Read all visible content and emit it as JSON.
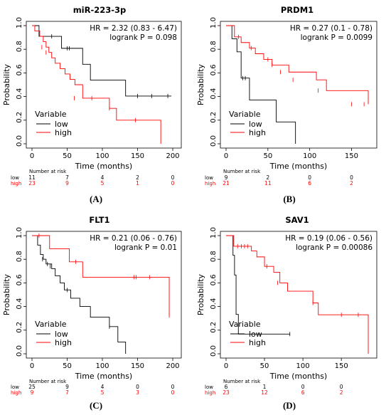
{
  "panels": [
    {
      "caption": "(A)"
    },
    {
      "caption": "(B)"
    },
    {
      "caption": "(C)"
    },
    {
      "caption": "(D)"
    }
  ],
  "colors": {
    "low": "#000000",
    "high": "#ff0000",
    "axis": "#000000"
  },
  "chart_data": [
    {
      "type": "line",
      "title": "miR-223-3p",
      "xlabel": "Time (months)",
      "ylabel": "Probability",
      "xlim": [
        0,
        200
      ],
      "ylim": [
        0,
        1
      ],
      "xticks": [
        0,
        50,
        100,
        150,
        200
      ],
      "yticks": [
        0.0,
        0.2,
        0.4,
        0.6,
        0.8,
        1.0
      ],
      "annotations": [
        "HR = 2.32 (0.83 - 6.47)",
        "logrank P = 0.098"
      ],
      "legend": {
        "title": "Variable",
        "position": "bottom-left",
        "entries": [
          "low",
          "high"
        ]
      },
      "series": [
        {
          "name": "low",
          "color": "#000000",
          "x": [
            0,
            10,
            28,
            42,
            72,
            83,
            133,
            198
          ],
          "y": [
            1.0,
            0.909,
            0.909,
            0.808,
            0.673,
            0.539,
            0.404,
            0.404
          ],
          "censor_x": [
            28,
            50,
            53,
            150,
            170,
            193
          ],
          "censor_y": [
            0.909,
            0.808,
            0.808,
            0.404,
            0.404,
            0.404
          ]
        },
        {
          "name": "high",
          "color": "#ff0000",
          "x": [
            0,
            4,
            11,
            16,
            20,
            24,
            28,
            33,
            40,
            47,
            54,
            61,
            72,
            110,
            120,
            183
          ],
          "y": [
            1.0,
            0.955,
            0.909,
            0.864,
            0.818,
            0.773,
            0.727,
            0.682,
            0.636,
            0.591,
            0.545,
            0.5,
            0.386,
            0.3,
            0.2,
            0.0
          ],
          "censor_x": [
            14,
            20,
            60,
            85,
            110,
            147
          ],
          "censor_y": [
            0.818,
            0.773,
            0.386,
            0.386,
            0.3,
            0.2
          ]
        }
      ],
      "risk_table": {
        "title": "Number at risk",
        "times": [
          0,
          50,
          100,
          150,
          200
        ],
        "rows": [
          {
            "label": "low",
            "values": [
              "11",
              "7",
              "4",
              "2",
              "0"
            ]
          },
          {
            "label": "high",
            "values": [
              "23",
              "9",
              "5",
              "1",
              "0"
            ]
          }
        ]
      }
    },
    {
      "type": "line",
      "title": "PRDM1",
      "xlabel": "Time (months)",
      "ylabel": "Probability",
      "xlim": [
        0,
        170
      ],
      "ylim": [
        0,
        1
      ],
      "xticks": [
        0,
        50,
        100,
        150
      ],
      "yticks": [
        0.0,
        0.2,
        0.4,
        0.6,
        0.8,
        1.0
      ],
      "annotations": [
        "HR = 0.27 (0.1 - 0.78)",
        "logrank P = 0.0099"
      ],
      "legend": {
        "title": "Variable",
        "position": "bottom-left",
        "entries": [
          "low",
          "high"
        ]
      },
      "series": [
        {
          "name": "low",
          "color": "#000000",
          "x": [
            0,
            7,
            13,
            18,
            28,
            60,
            83
          ],
          "y": [
            1.0,
            0.889,
            0.778,
            0.556,
            0.37,
            0.185,
            0.0
          ],
          "censor_x": [
            20,
            23
          ],
          "censor_y": [
            0.556,
            0.556
          ]
        },
        {
          "name": "high",
          "color": "#ff0000",
          "x": [
            0,
            10,
            18,
            28,
            35,
            45,
            55,
            75,
            108,
            120,
            170
          ],
          "y": [
            1.0,
            0.905,
            0.857,
            0.81,
            0.762,
            0.714,
            0.667,
            0.607,
            0.541,
            0.45,
            0.335
          ],
          "censor_x": [
            15,
            30,
            50,
            55,
            65,
            80,
            110,
            150,
            165
          ],
          "censor_y": [
            0.905,
            0.81,
            0.714,
            0.667,
            0.607,
            0.541,
            0.45,
            0.335,
            0.335
          ]
        }
      ],
      "risk_table": {
        "title": "Number at risk",
        "times": [
          0,
          50,
          100,
          150
        ],
        "rows": [
          {
            "label": "low",
            "values": [
              "9",
              "2",
              "0",
              "0"
            ]
          },
          {
            "label": "high",
            "values": [
              "21",
              "11",
              "6",
              "2"
            ]
          }
        ]
      }
    },
    {
      "type": "line",
      "title": "FLT1",
      "xlabel": "Time (months)",
      "ylabel": "Probability",
      "xlim": [
        0,
        200
      ],
      "ylim": [
        0,
        1
      ],
      "xticks": [
        0,
        50,
        100,
        150,
        200
      ],
      "yticks": [
        0.0,
        0.2,
        0.4,
        0.6,
        0.8,
        1.0
      ],
      "annotations": [
        "HR = 0.21 (0.06 - 0.76)",
        "logrank P = 0.01"
      ],
      "legend": {
        "title": "Variable",
        "position": "bottom-left",
        "entries": [
          "low",
          "high"
        ]
      },
      "series": [
        {
          "name": "low",
          "color": "#000000",
          "x": [
            0,
            8,
            12,
            16,
            20,
            28,
            33,
            40,
            46,
            55,
            68,
            83,
            110,
            122,
            133
          ],
          "y": [
            1.0,
            0.92,
            0.84,
            0.8,
            0.76,
            0.72,
            0.66,
            0.6,
            0.54,
            0.47,
            0.4,
            0.31,
            0.23,
            0.1,
            0.0
          ],
          "censor_x": [
            15,
            22,
            26,
            50,
            110
          ],
          "censor_y": [
            0.8,
            0.76,
            0.74,
            0.54,
            0.23
          ]
        },
        {
          "name": "high",
          "color": "#ff0000",
          "x": [
            0,
            25,
            53,
            72,
            185,
            195
          ],
          "y": [
            1.0,
            0.889,
            0.778,
            0.648,
            0.648,
            0.324
          ],
          "censor_x": [
            10,
            62,
            145,
            148,
            167,
            195
          ],
          "censor_y": [
            1.0,
            0.778,
            0.648,
            0.648,
            0.648,
            0.324
          ]
        }
      ],
      "risk_table": {
        "title": "Number at risk",
        "times": [
          0,
          50,
          100,
          150,
          200
        ],
        "rows": [
          {
            "label": "low",
            "values": [
              "25",
              "9",
              "4",
              "0",
              "0"
            ]
          },
          {
            "label": "high",
            "values": [
              "9",
              "7",
              "5",
              "3",
              "0"
            ]
          }
        ]
      }
    },
    {
      "type": "line",
      "title": "SAV1",
      "xlabel": "Time (months)",
      "ylabel": "Probability",
      "xlim": [
        0,
        185
      ],
      "ylim": [
        0,
        1
      ],
      "xticks": [
        0,
        50,
        100,
        150
      ],
      "yticks": [
        0.0,
        0.2,
        0.4,
        0.6,
        0.8,
        1.0
      ],
      "annotations": [
        "HR = 0.19 (0.06 - 0.56)",
        "logrank P = 0.00086"
      ],
      "legend": {
        "title": "Variable",
        "position": "bottom-left",
        "entries": [
          "low",
          "high"
        ]
      },
      "series": [
        {
          "name": "low",
          "color": "#000000",
          "x": [
            0,
            9,
            11,
            13,
            16,
            83
          ],
          "y": [
            1.0,
            0.833,
            0.667,
            0.333,
            0.167,
            0.167
          ],
          "censor_x": [
            83
          ],
          "censor_y": [
            0.167
          ]
        },
        {
          "name": "high",
          "color": "#ff0000",
          "x": [
            0,
            10,
            33,
            40,
            50,
            62,
            70,
            80,
            113,
            120,
            185
          ],
          "y": [
            1.0,
            0.91,
            0.87,
            0.82,
            0.74,
            0.69,
            0.6,
            0.53,
            0.43,
            0.33,
            0.0
          ],
          "censor_x": [
            15,
            20,
            24,
            28,
            53,
            67,
            113,
            150,
            172
          ],
          "censor_y": [
            0.91,
            0.91,
            0.91,
            0.91,
            0.74,
            0.6,
            0.43,
            0.33,
            0.33
          ]
        }
      ],
      "risk_table": {
        "title": "Number at risk",
        "times": [
          0,
          50,
          100,
          150
        ],
        "rows": [
          {
            "label": "low",
            "values": [
              "6",
              "1",
              "0",
              "0"
            ]
          },
          {
            "label": "high",
            "values": [
              "23",
              "12",
              "6",
              "2"
            ]
          }
        ]
      }
    }
  ]
}
